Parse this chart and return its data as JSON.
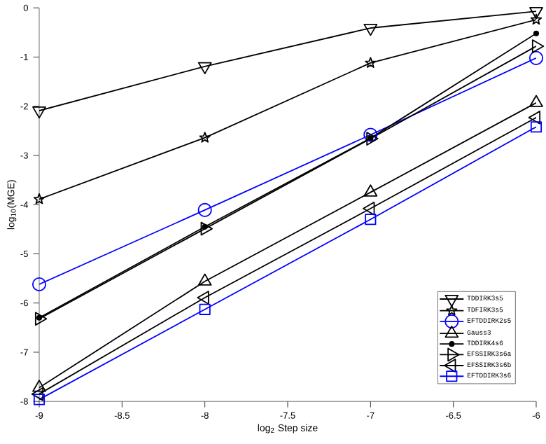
{
  "chart_data": {
    "type": "line",
    "xlabel": "log$_{2}$ Step size",
    "ylabel": "log$_{10}$(MGE)",
    "x": [
      -9,
      -8,
      -7,
      -6
    ],
    "xlim": [
      -9,
      -6
    ],
    "ylim": [
      -8,
      0
    ],
    "xticks": [
      -9,
      -8.5,
      -8,
      -7.5,
      -7,
      -6.5,
      -6
    ],
    "yticks": [
      -8,
      -7,
      -6,
      -5,
      -4,
      -3,
      -2,
      -1,
      0
    ],
    "grid": false,
    "legend": "bottom right",
    "line_style": "solid",
    "series": [
      {
        "name": "TDDIRK3s5",
        "color": "#000000",
        "marker": "triangle-down",
        "values": [
          -2.09,
          -1.19,
          -0.41,
          -0.07
        ]
      },
      {
        "name": "TDFIRK3s5",
        "color": "#000000",
        "marker": "star",
        "values": [
          -3.89,
          -2.64,
          -1.12,
          -0.24
        ]
      },
      {
        "name": "EFTDDIRK2s5",
        "color": "#0000ff",
        "marker": "circle",
        "values": [
          -5.62,
          -4.11,
          -2.58,
          -1.02
        ]
      },
      {
        "name": "Gauss3",
        "color": "#000000",
        "marker": "triangle",
        "values": [
          -7.72,
          -5.56,
          -3.75,
          -1.93
        ]
      },
      {
        "name": "TDDIRK4s6",
        "color": "#000000",
        "marker": "dot",
        "values": [
          -6.3,
          -4.45,
          -2.65,
          -0.52
        ]
      },
      {
        "name": "EFSSIRK3s6a",
        "color": "#000000",
        "marker": "triangle-right",
        "values": [
          -6.32,
          -4.49,
          -2.66,
          -0.78
        ]
      },
      {
        "name": "EFSSIRK3s6b",
        "color": "#000000",
        "marker": "triangle-left",
        "values": [
          -7.85,
          -5.89,
          -4.08,
          -2.23
        ]
      },
      {
        "name": "EFTDDIRK3s6",
        "color": "#0000ff",
        "marker": "square",
        "values": [
          -7.96,
          -6.13,
          -4.3,
          -2.42
        ]
      }
    ]
  }
}
